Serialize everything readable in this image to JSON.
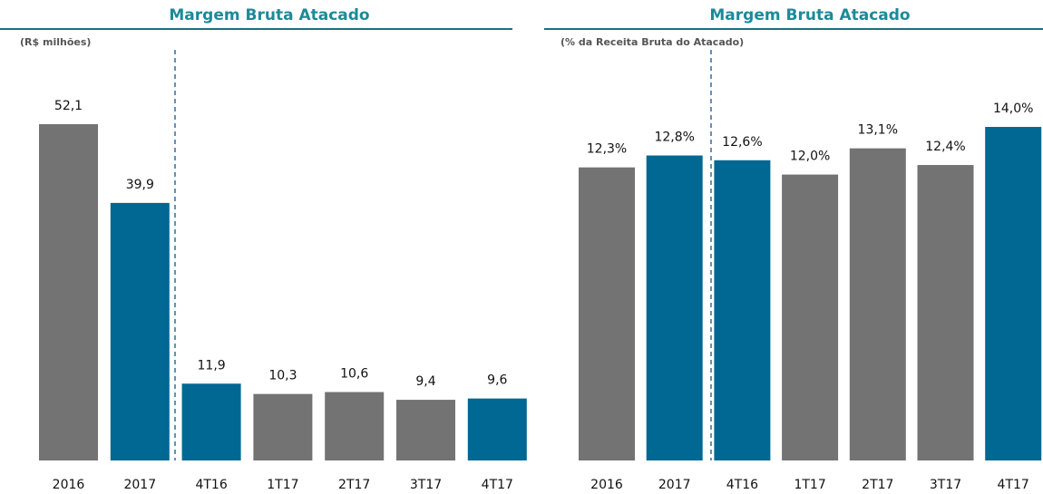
{
  "chart_data": [
    {
      "type": "bar",
      "title": "Margem Bruta Atacado",
      "subtitle": "(R$ milhões)",
      "categories": [
        "2016",
        "2017",
        "4T16",
        "1T17",
        "2T17",
        "3T17",
        "4T17"
      ],
      "values": [
        52.1,
        39.9,
        11.9,
        10.3,
        10.6,
        9.4,
        9.6
      ],
      "value_labels": [
        "52,1",
        "39,9",
        "11,9",
        "10,3",
        "10,6",
        "9,4",
        "9,6"
      ],
      "colors": [
        "#737373",
        "#006892",
        "#006892",
        "#737373",
        "#737373",
        "#737373",
        "#006892"
      ]
    },
    {
      "type": "bar",
      "title": "Margem Bruta Atacado",
      "subtitle": "(% da Receita Bruta do Atacado)",
      "categories": [
        "2016",
        "2017",
        "4T16",
        "1T17",
        "2T17",
        "3T17",
        "4T17"
      ],
      "values": [
        12.3,
        12.8,
        12.6,
        12.0,
        13.1,
        12.4,
        14.0
      ],
      "value_labels": [
        "12,3%",
        "12,8%",
        "12,6%",
        "12,0%",
        "13,1%",
        "12,4%",
        "14,0%"
      ],
      "colors": [
        "#737373",
        "#006892",
        "#006892",
        "#737373",
        "#737373",
        "#737373",
        "#006892"
      ]
    }
  ]
}
